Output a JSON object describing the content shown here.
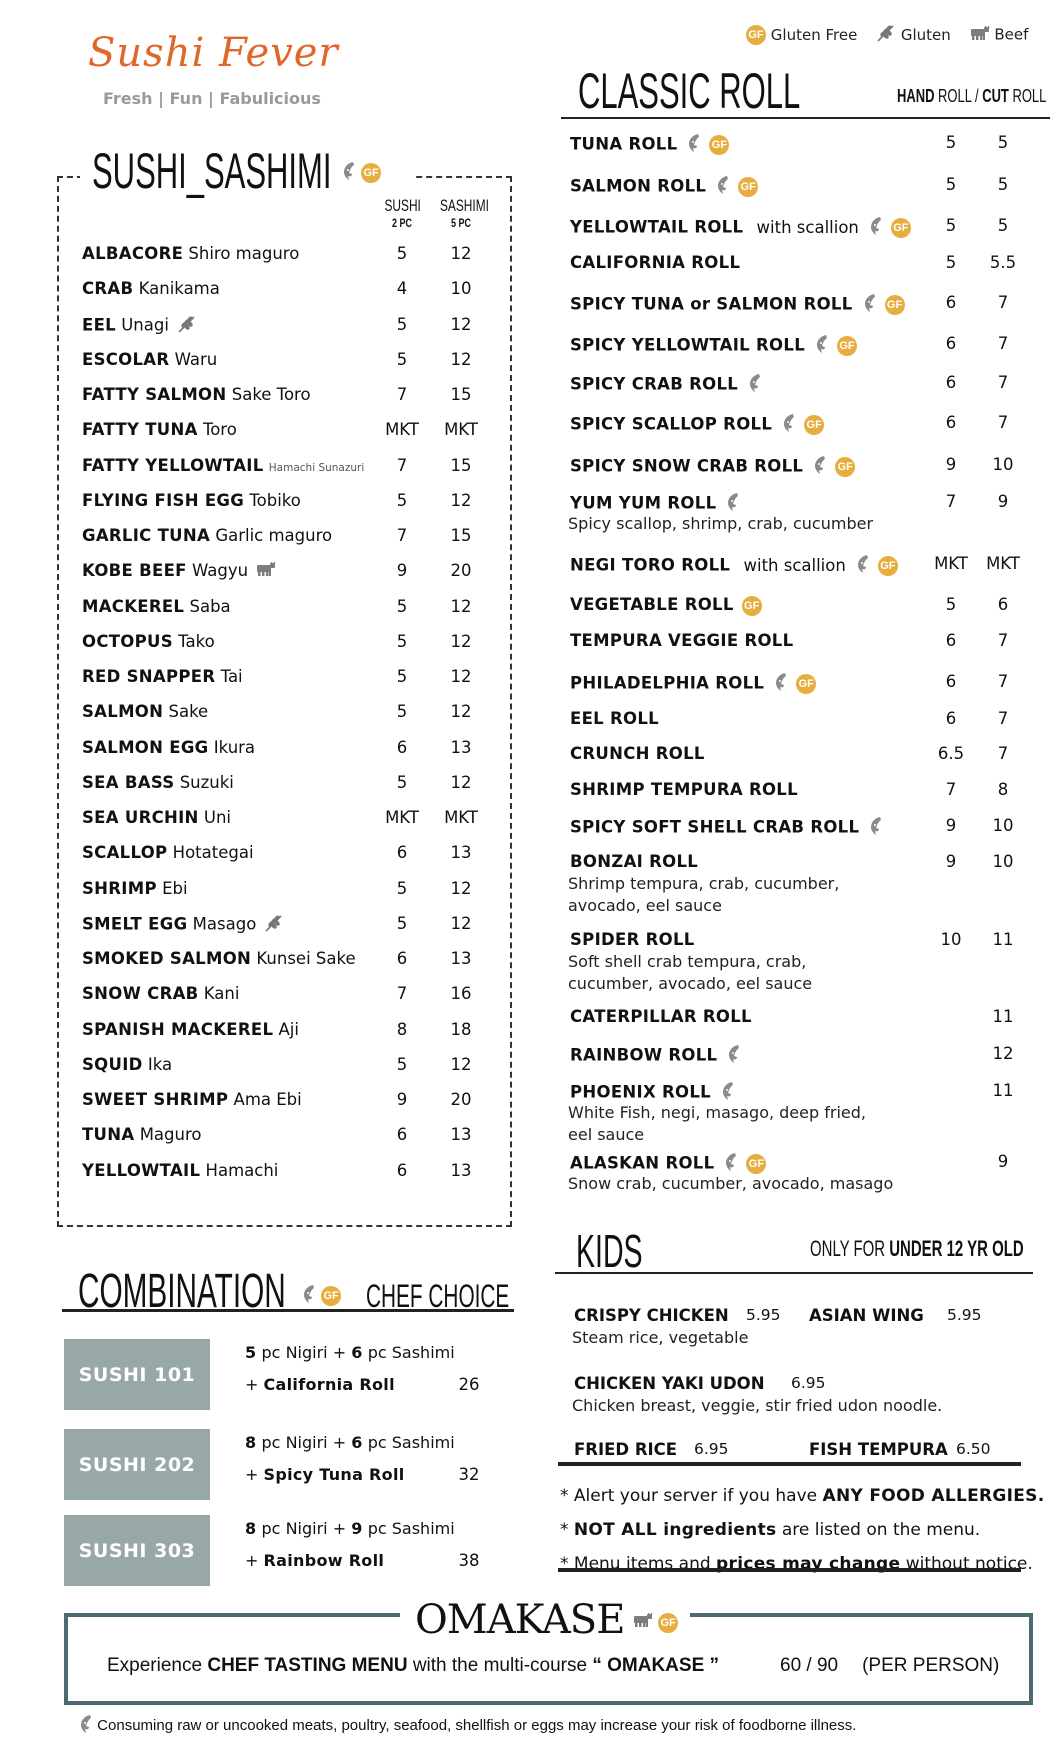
{
  "brand": {
    "name": "Sushi Fever",
    "tagline": "Fresh | Fun | Fabulicious",
    "color": "#e0662a"
  },
  "legend": [
    {
      "icon": "gluten-free-icon",
      "label": "Gluten Free"
    },
    {
      "icon": "gluten-icon",
      "label": "Gluten"
    },
    {
      "icon": "beef-icon",
      "label": "Beef"
    }
  ],
  "colors": {
    "gf_badge": "#e7ad3e",
    "icon_gray": "#8a8a8a",
    "combo_box": "#98a8a9",
    "omakase_border": "#4c6b70"
  },
  "gf_text": "GF",
  "sushi_sashimi": {
    "title": "SUSHI_SASHIMI",
    "title_icons": [
      "fish",
      "gf"
    ],
    "col_sushi": "SUSHI",
    "col_sushi_sub": "2 PC",
    "col_sashimi": "SASHIMI",
    "col_sashimi_sub": "5 PC",
    "items": [
      {
        "name": "ALBACORE",
        "jp": "Shiro maguro",
        "sushi": "5",
        "sashimi": "12",
        "icons": []
      },
      {
        "name": "CRAB",
        "jp": "Kanikama",
        "sushi": "4",
        "sashimi": "10",
        "icons": []
      },
      {
        "name": "EEL",
        "jp": "Unagi",
        "sushi": "5",
        "sashimi": "12",
        "icons": [
          "gluten"
        ]
      },
      {
        "name": "ESCOLAR",
        "jp": "Waru",
        "sushi": "5",
        "sashimi": "12",
        "icons": []
      },
      {
        "name": "FATTY SALMON",
        "jp": "Sake Toro",
        "sushi": "7",
        "sashimi": "15",
        "icons": []
      },
      {
        "name": "FATTY TUNA",
        "jp": "Toro",
        "sushi": "MKT",
        "sashimi": "MKT",
        "icons": []
      },
      {
        "name": "FATTY YELLOWTAIL",
        "jp": "Hamachi Sunazuri",
        "small": true,
        "sushi": "7",
        "sashimi": "15",
        "icons": []
      },
      {
        "name": "FLYING FISH EGG",
        "jp": "Tobiko",
        "sushi": "5",
        "sashimi": "12",
        "icons": []
      },
      {
        "name": "GARLIC TUNA",
        "jp": "Garlic maguro",
        "sushi": "7",
        "sashimi": "15",
        "icons": []
      },
      {
        "name": "KOBE BEEF",
        "jp": "Wagyu",
        "sushi": "9",
        "sashimi": "20",
        "icons": [
          "beef"
        ]
      },
      {
        "name": "MACKEREL",
        "jp": "Saba",
        "sushi": "5",
        "sashimi": "12",
        "icons": []
      },
      {
        "name": "OCTOPUS",
        "jp": "Tako",
        "sushi": "5",
        "sashimi": "12",
        "icons": []
      },
      {
        "name": "RED SNAPPER",
        "jp": "Tai",
        "sushi": "5",
        "sashimi": "12",
        "icons": []
      },
      {
        "name": "SALMON",
        "jp": "Sake",
        "sushi": "5",
        "sashimi": "12",
        "icons": []
      },
      {
        "name": "SALMON EGG",
        "jp": "Ikura",
        "sushi": "6",
        "sashimi": "13",
        "icons": []
      },
      {
        "name": "SEA BASS",
        "jp": "Suzuki",
        "sushi": "5",
        "sashimi": "12",
        "icons": []
      },
      {
        "name": "SEA URCHIN",
        "jp": "Uni",
        "sushi": "MKT",
        "sashimi": "MKT",
        "icons": []
      },
      {
        "name": "SCALLOP",
        "jp": "Hotategai",
        "sushi": "6",
        "sashimi": "13",
        "icons": []
      },
      {
        "name": "SHRIMP",
        "jp": "Ebi",
        "sushi": "5",
        "sashimi": "12",
        "icons": []
      },
      {
        "name": "SMELT EGG",
        "jp": "Masago",
        "sushi": "5",
        "sashimi": "12",
        "icons": [
          "gluten"
        ]
      },
      {
        "name": "SMOKED SALMON",
        "jp": "Kunsei Sake",
        "sushi": "6",
        "sashimi": "13",
        "icons": []
      },
      {
        "name": "SNOW CRAB",
        "jp": "Kani",
        "sushi": "7",
        "sashimi": "16",
        "icons": []
      },
      {
        "name": "SPANISH MACKEREL",
        "jp": "Aji",
        "sushi": "8",
        "sashimi": "18",
        "icons": []
      },
      {
        "name": "SQUID",
        "jp": "Ika",
        "sushi": "5",
        "sashimi": "12",
        "icons": []
      },
      {
        "name": "SWEET SHRIMP",
        "jp": "Ama Ebi",
        "sushi": "9",
        "sashimi": "20",
        "icons": []
      },
      {
        "name": "TUNA",
        "jp": "Maguro",
        "sushi": "6",
        "sashimi": "13",
        "icons": []
      },
      {
        "name": "YELLOWTAIL",
        "jp": "Hamachi",
        "sushi": "6",
        "sashimi": "13",
        "icons": []
      }
    ]
  },
  "classic_roll": {
    "title": "CLASSIC ROLL",
    "col_hand_bold": "HAND",
    "col_hand_rest": " ROLL / ",
    "col_cut_bold": "CUT",
    "col_cut_rest": " ROLL",
    "items": [
      {
        "name": "TUNA ROLL",
        "extra": "",
        "icons": [
          "fish",
          "gf"
        ],
        "hand": "5",
        "cut": "5",
        "desc": []
      },
      {
        "name": "SALMON ROLL",
        "extra": "",
        "icons": [
          "fish",
          "gf"
        ],
        "hand": "5",
        "cut": "5",
        "desc": []
      },
      {
        "name": "YELLOWTAIL ROLL",
        "extra": "with scallion",
        "icons": [
          "fish",
          "gf"
        ],
        "hand": "5",
        "cut": "5",
        "desc": []
      },
      {
        "name": "CALIFORNIA ROLL",
        "extra": "",
        "icons": [],
        "hand": "5",
        "cut": "5.5",
        "desc": []
      },
      {
        "name": "SPICY TUNA or SALMON ROLL",
        "extra": "",
        "icons": [
          "fish",
          "gf"
        ],
        "hand": "6",
        "cut": "7",
        "desc": []
      },
      {
        "name": "SPICY YELLOWTAIL ROLL",
        "extra": "",
        "icons": [
          "fish",
          "gf"
        ],
        "hand": "6",
        "cut": "7",
        "desc": []
      },
      {
        "name": "SPICY CRAB ROLL",
        "extra": "",
        "icons": [
          "fish"
        ],
        "hand": "6",
        "cut": "7",
        "desc": []
      },
      {
        "name": "SPICY SCALLOP ROLL",
        "extra": "",
        "icons": [
          "fish",
          "gf"
        ],
        "hand": "6",
        "cut": "7",
        "desc": []
      },
      {
        "name": "SPICY SNOW CRAB ROLL",
        "extra": "",
        "icons": [
          "fish",
          "gf"
        ],
        "hand": "9",
        "cut": "10",
        "desc": []
      },
      {
        "name": "YUM YUM ROLL",
        "extra": "",
        "icons": [
          "fish"
        ],
        "hand": "7",
        "cut": "9",
        "desc": [
          "Spicy scallop, shrimp, crab, cucumber"
        ]
      },
      {
        "name": "NEGI TORO ROLL",
        "extra": "with scallion",
        "icons": [
          "fish",
          "gf"
        ],
        "hand": "MKT",
        "cut": "MKT",
        "desc": []
      },
      {
        "name": "VEGETABLE ROLL",
        "extra": "",
        "icons": [
          "gf"
        ],
        "hand": "5",
        "cut": "6",
        "desc": []
      },
      {
        "name": "TEMPURA VEGGIE ROLL",
        "extra": "",
        "icons": [],
        "hand": "6",
        "cut": "7",
        "desc": []
      },
      {
        "name": "PHILADELPHIA ROLL",
        "extra": "",
        "icons": [
          "fish",
          "gf"
        ],
        "hand": "6",
        "cut": "7",
        "desc": []
      },
      {
        "name": "EEL ROLL",
        "extra": "",
        "icons": [],
        "hand": "6",
        "cut": "7",
        "desc": []
      },
      {
        "name": "CRUNCH ROLL",
        "extra": "",
        "icons": [],
        "hand": "6.5",
        "cut": "7",
        "desc": []
      },
      {
        "name": "SHRIMP TEMPURA ROLL",
        "extra": "",
        "icons": [],
        "hand": "7",
        "cut": "8",
        "desc": []
      },
      {
        "name": "SPICY SOFT SHELL CRAB ROLL",
        "extra": "",
        "icons": [
          "fish"
        ],
        "hand": "9",
        "cut": "10",
        "desc": []
      },
      {
        "name": "BONZAI ROLL",
        "extra": "",
        "icons": [],
        "hand": "9",
        "cut": "10",
        "desc": [
          "Shrimp tempura, crab, cucumber,",
          "avocado, eel sauce"
        ]
      },
      {
        "name": "SPIDER ROLL",
        "extra": "",
        "icons": [],
        "hand": "10",
        "cut": "11",
        "desc": [
          "Soft shell crab tempura, crab,",
          "cucumber, avocado, eel sauce"
        ]
      },
      {
        "name": "CATERPILLAR ROLL",
        "extra": "",
        "icons": [],
        "hand": "",
        "cut": "11",
        "desc": []
      },
      {
        "name": "RAINBOW ROLL",
        "extra": "",
        "icons": [
          "fish"
        ],
        "hand": "",
        "cut": "12",
        "desc": []
      },
      {
        "name": "PHOENIX ROLL",
        "extra": "",
        "icons": [
          "fish"
        ],
        "hand": "",
        "cut": "11",
        "desc": [
          "White Fish, negi, masago, deep fried,",
          "eel sauce"
        ]
      },
      {
        "name": "ALASKAN ROLL",
        "extra": "",
        "icons": [
          "fish",
          "gf"
        ],
        "hand": "",
        "cut": "9",
        "desc": [
          "Snow crab, cucumber, avocado, masago"
        ]
      }
    ]
  },
  "combination": {
    "title": "COMBINATION",
    "subtitle": "CHEF CHOICE",
    "sets": [
      {
        "label": "SUSHI 101",
        "nigiri": "5",
        "sashimi": "6",
        "line1_a": " pc Nigiri + ",
        "line1_b": " pc Sashimi",
        "roll": "California Roll",
        "price": "26"
      },
      {
        "label": "SUSHI 202",
        "nigiri": "8",
        "sashimi": "6",
        "line1_a": " pc Nigiri + ",
        "line1_b": " pc Sashimi",
        "roll": "Spicy Tuna Roll",
        "price": "32"
      },
      {
        "label": "SUSHI 303",
        "nigiri": "8",
        "sashimi": "9",
        "line1_a": " pc Nigiri + ",
        "line1_b": " pc Sashimi",
        "roll": "Rainbow Roll",
        "price": "38"
      }
    ]
  },
  "kids": {
    "title": "KIDS",
    "note_light": "ONLY FOR ",
    "note_bold": "UNDER 12 YR OLD",
    "items": [
      {
        "name": "CRISPY CHICKEN",
        "price": "5.95",
        "desc": "Steam rice, vegetable"
      },
      {
        "name": "ASIAN WING",
        "price": "5.95",
        "desc": ""
      },
      {
        "name": "CHICKEN YAKI UDON",
        "price": "6.95",
        "desc": "Chicken breast, veggie, stir fried udon noodle."
      },
      {
        "name": "FRIED RICE",
        "price": "6.95",
        "desc": ""
      },
      {
        "name": "FISH TEMPURA",
        "price": "6.50",
        "desc": ""
      }
    ]
  },
  "notes": [
    [
      {
        "t": "* Alert your server if you have ",
        "b": false
      },
      {
        "t": "ANY FOOD ALLERGIES.",
        "b": true
      }
    ],
    [
      {
        "t": "* ",
        "b": false
      },
      {
        "t": "NOT ALL ingredients",
        "b": true
      },
      {
        "t": " are listed on the menu.",
        "b": false
      }
    ],
    [
      {
        "t": "* Menu items and ",
        "b": false
      },
      {
        "t": "prices may change",
        "b": true
      },
      {
        "t": " without notice.",
        "b": false
      }
    ]
  ],
  "omakase": {
    "title": "OMAKASE",
    "icons": [
      "beef",
      "gf"
    ],
    "text_a": "Experience ",
    "text_b": "CHEF TASTING MENU",
    "text_c": " with the multi-course ",
    "text_d": "“ OMAKASE ”",
    "price": "60 / 90",
    "per": "(PER PERSON)"
  },
  "disclaimer": "Consuming raw or uncooked meats, poultry, seafood, shellfish or eggs may increase your risk of foodborne illness."
}
